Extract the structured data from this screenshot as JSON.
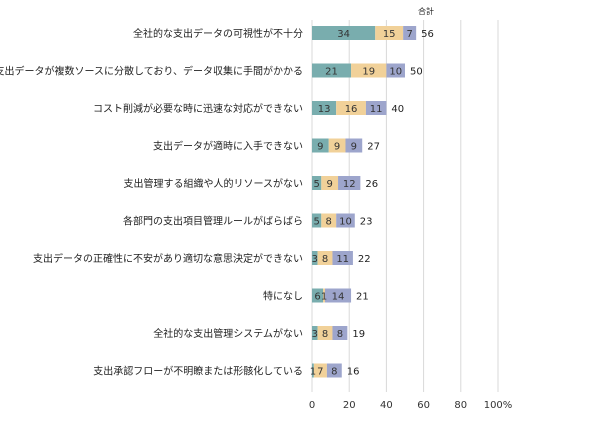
{
  "chart_data": {
    "type": "bar",
    "orientation": "horizontal",
    "stacked": true,
    "header": "合計",
    "categories": [
      "全社的な支出データの可視性が不十分",
      "支出データが複数ソースに分散しており、データ収集に手間がかかる",
      "コスト削減が必要な時に迅速な対応ができない",
      "支出データが適時に入手できない",
      "支出管理する組織や人的リソースがない",
      "各部門の支出項目管理ルールがばらばら",
      "支出データの正確性に不安があり適切な意思決定ができない",
      "特になし",
      "全社的な支出管理システムがない",
      "支出承認フローが不明瞭または形骸化している"
    ],
    "series": [
      {
        "values": [
          34,
          21,
          13,
          9,
          5,
          5,
          3,
          6,
          3,
          1
        ],
        "color": "#79adae"
      },
      {
        "values": [
          15,
          19,
          16,
          9,
          9,
          8,
          8,
          1,
          8,
          7
        ],
        "color": "#f1d199"
      },
      {
        "values": [
          7,
          10,
          11,
          9,
          12,
          10,
          11,
          14,
          8,
          8
        ],
        "color": "#9da5cc"
      }
    ],
    "totals": [
      56,
      50,
      40,
      27,
      26,
      23,
      22,
      21,
      19,
      16
    ],
    "x_ticks": [
      "0",
      "20",
      "40",
      "60",
      "80",
      "100%"
    ],
    "xlim": [
      0,
      100
    ],
    "grid": true
  }
}
